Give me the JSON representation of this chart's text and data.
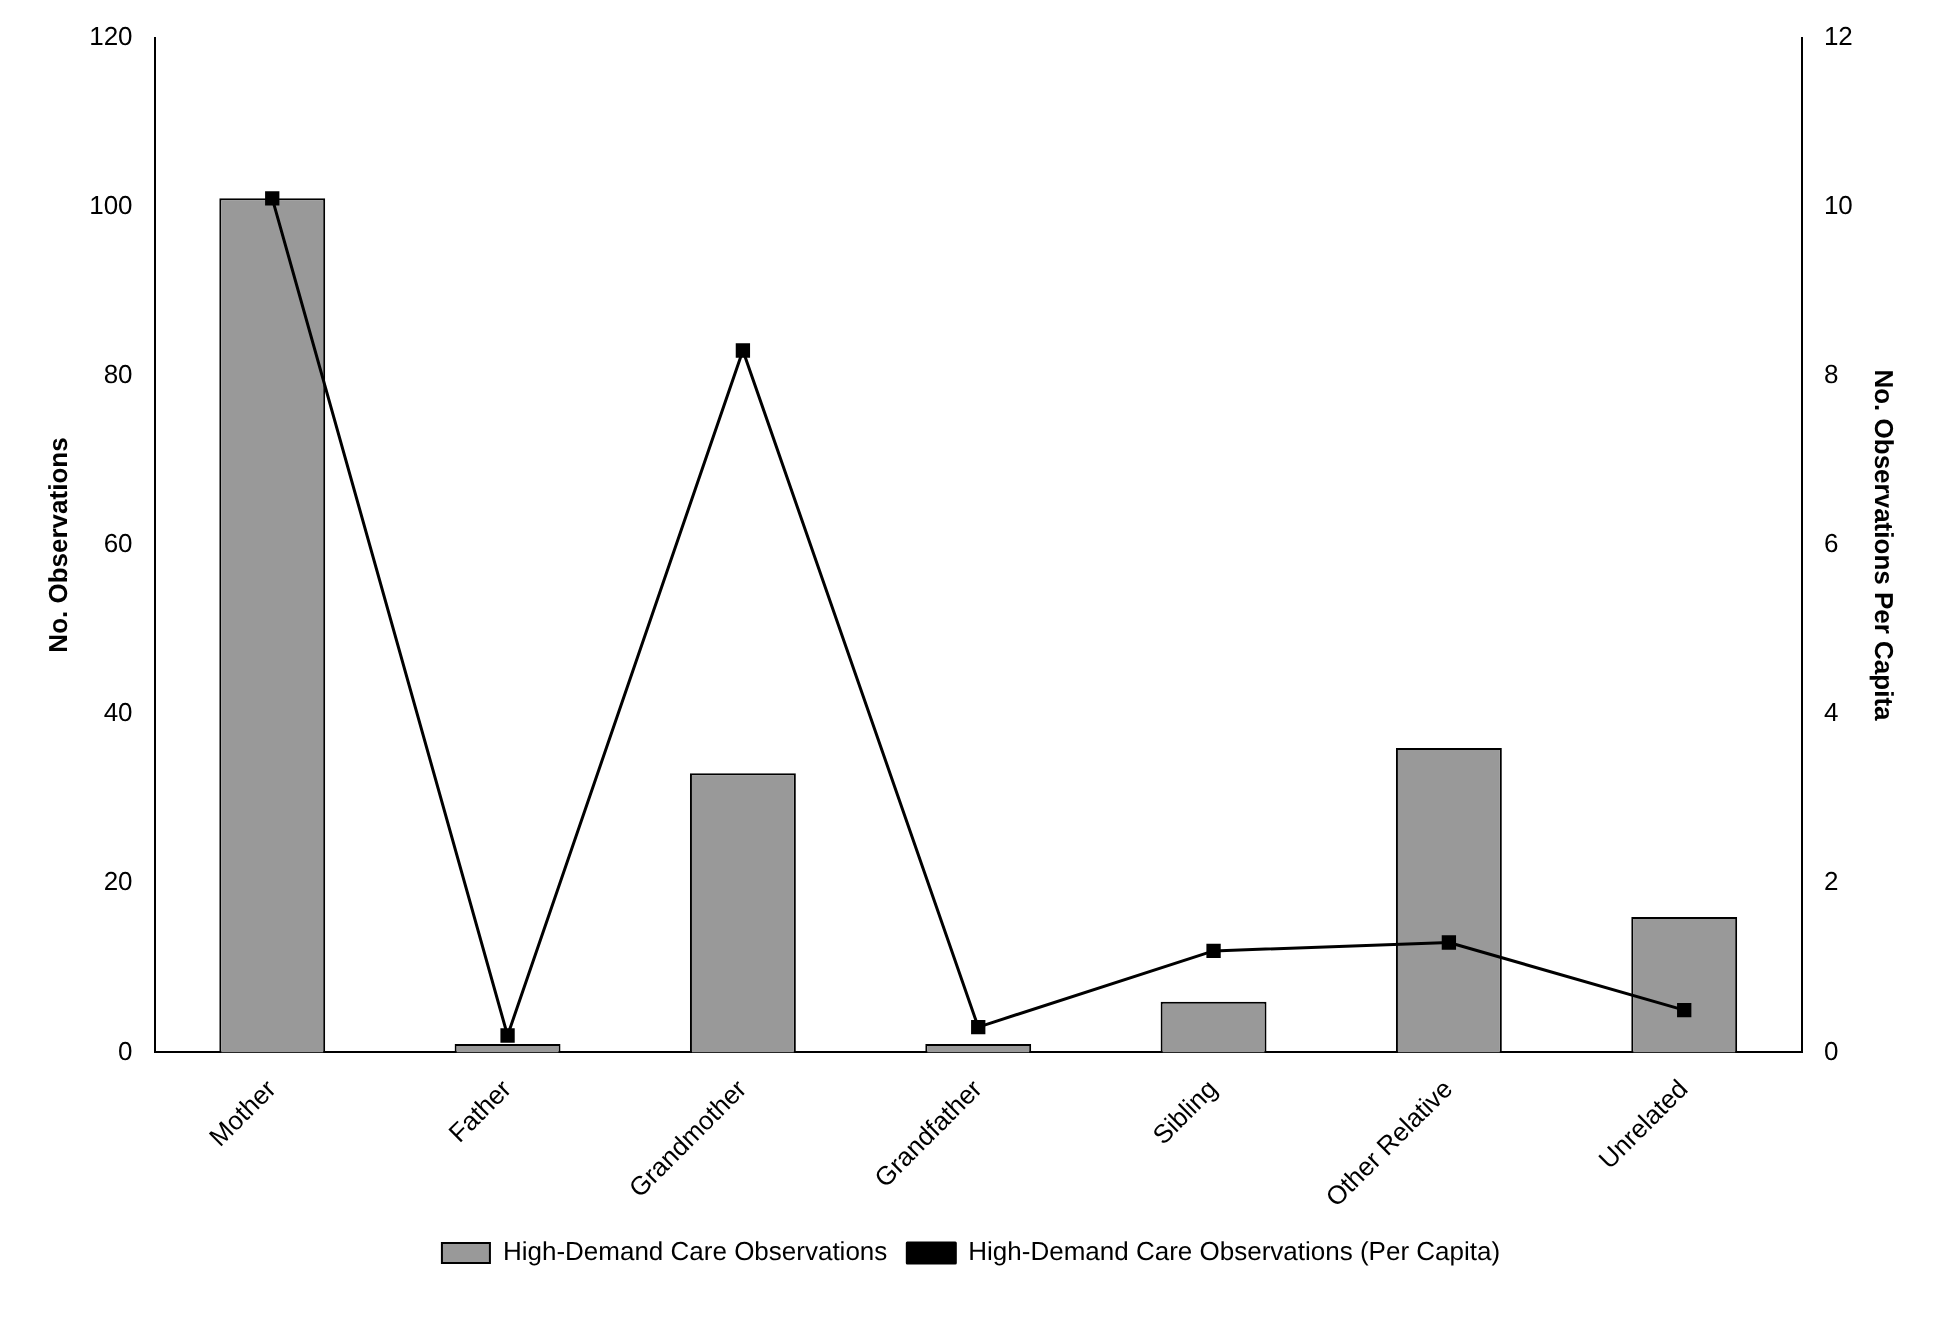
{
  "chart_data": {
    "type": "bar",
    "ylabel": "No. Observations",
    "y2label": "No. Observations Per Capita",
    "categories": [
      "Mother",
      "Father",
      "Grandmother",
      "Grandfather",
      "Sibling",
      "Other Relative",
      "Unrelated"
    ],
    "series": [
      {
        "name": "High-Demand Care Observations",
        "color": "#999999",
        "values": [
          101,
          1,
          33,
          1,
          6,
          36,
          16
        ]
      },
      {
        "name": "High-Demand Care Observations (Per Capita)",
        "type": "line",
        "axis": "y2",
        "color": "#000000",
        "marker": "square",
        "values": [
          10.1,
          0.2,
          8.3,
          0.3,
          1.2,
          1.3,
          0.5
        ]
      }
    ],
    "ylim": [
      0,
      120
    ],
    "yticks": [
      0,
      20,
      40,
      60,
      80,
      100,
      120
    ],
    "y2lim": [
      0,
      12
    ],
    "y2ticks": [
      0,
      2,
      4,
      6,
      8,
      10,
      12
    ],
    "grid": false,
    "legend": "bottom"
  }
}
